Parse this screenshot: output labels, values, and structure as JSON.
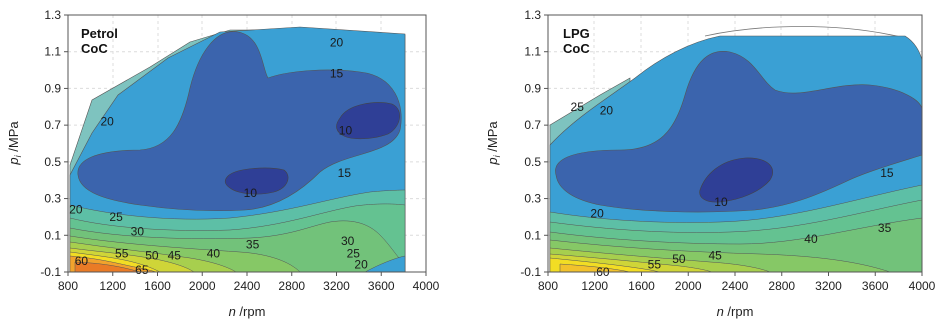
{
  "chart_data": [
    {
      "type": "contour",
      "title": "Petrol",
      "subtitle": "CoC",
      "xlabel": "rpm",
      "xlabel_var": "n",
      "ylabel": "MPa",
      "ylabel_var": "pi",
      "xlim": [
        800,
        4000
      ],
      "ylim": [
        -0.1,
        1.3
      ],
      "x_ticks": [
        "800",
        "1200",
        "1600",
        "2000",
        "2400",
        "2800",
        "3200",
        "3600",
        "4000"
      ],
      "y_ticks": [
        "-0.1",
        "0.1",
        "0.3",
        "0.5",
        "0.7",
        "0.9",
        "1.1",
        "1.3"
      ],
      "grid": true,
      "contour_labels": [
        {
          "text": "20",
          "x": 3200,
          "y": 1.15
        },
        {
          "text": "15",
          "x": 3200,
          "y": 0.98
        },
        {
          "text": "20",
          "x": 1150,
          "y": 0.72
        },
        {
          "text": "10",
          "x": 3280,
          "y": 0.67
        },
        {
          "text": "15",
          "x": 3270,
          "y": 0.44
        },
        {
          "text": "10",
          "x": 2430,
          "y": 0.33
        },
        {
          "text": "20",
          "x": 870,
          "y": 0.24
        },
        {
          "text": "25",
          "x": 1230,
          "y": 0.2
        },
        {
          "text": "30",
          "x": 1420,
          "y": 0.12
        },
        {
          "text": "35",
          "x": 2450,
          "y": 0.05
        },
        {
          "text": "30",
          "x": 3300,
          "y": 0.07
        },
        {
          "text": "25",
          "x": 3350,
          "y": 0.0
        },
        {
          "text": "20",
          "x": 3420,
          "y": -0.06
        },
        {
          "text": "40",
          "x": 2100,
          "y": 0.0
        },
        {
          "text": "45",
          "x": 1750,
          "y": -0.01
        },
        {
          "text": "50",
          "x": 1550,
          "y": -0.01
        },
        {
          "text": "55",
          "x": 1280,
          "y": 0.0
        },
        {
          "text": "60",
          "x": 920,
          "y": -0.04
        },
        {
          "text": "65",
          "x": 1460,
          "y": -0.09
        }
      ]
    },
    {
      "type": "contour",
      "title": "LPG",
      "subtitle": "CoC",
      "xlabel": "rpm",
      "xlabel_var": "n",
      "ylabel": "MPa",
      "ylabel_var": "pi",
      "xlim": [
        800,
        4000
      ],
      "ylim": [
        -0.1,
        1.3
      ],
      "x_ticks": [
        "800",
        "1200",
        "1600",
        "2000",
        "2400",
        "2800",
        "3200",
        "3600",
        "4000"
      ],
      "y_ticks": [
        "-0.1",
        "0.1",
        "0.3",
        "0.5",
        "0.7",
        "0.9",
        "1.1",
        "1.3"
      ],
      "grid": true,
      "contour_labels": [
        {
          "text": "25",
          "x": 1050,
          "y": 0.8
        },
        {
          "text": "20",
          "x": 1300,
          "y": 0.78
        },
        {
          "text": "15",
          "x": 3700,
          "y": 0.44
        },
        {
          "text": "10",
          "x": 2280,
          "y": 0.28
        },
        {
          "text": "20",
          "x": 1220,
          "y": 0.22
        },
        {
          "text": "40",
          "x": 3050,
          "y": 0.08
        },
        {
          "text": "35",
          "x": 3680,
          "y": 0.14
        },
        {
          "text": "45",
          "x": 2230,
          "y": -0.01
        },
        {
          "text": "50",
          "x": 1920,
          "y": -0.03
        },
        {
          "text": "55",
          "x": 1710,
          "y": -0.06
        },
        {
          "text": "60",
          "x": 1270,
          "y": -0.1
        }
      ]
    }
  ]
}
